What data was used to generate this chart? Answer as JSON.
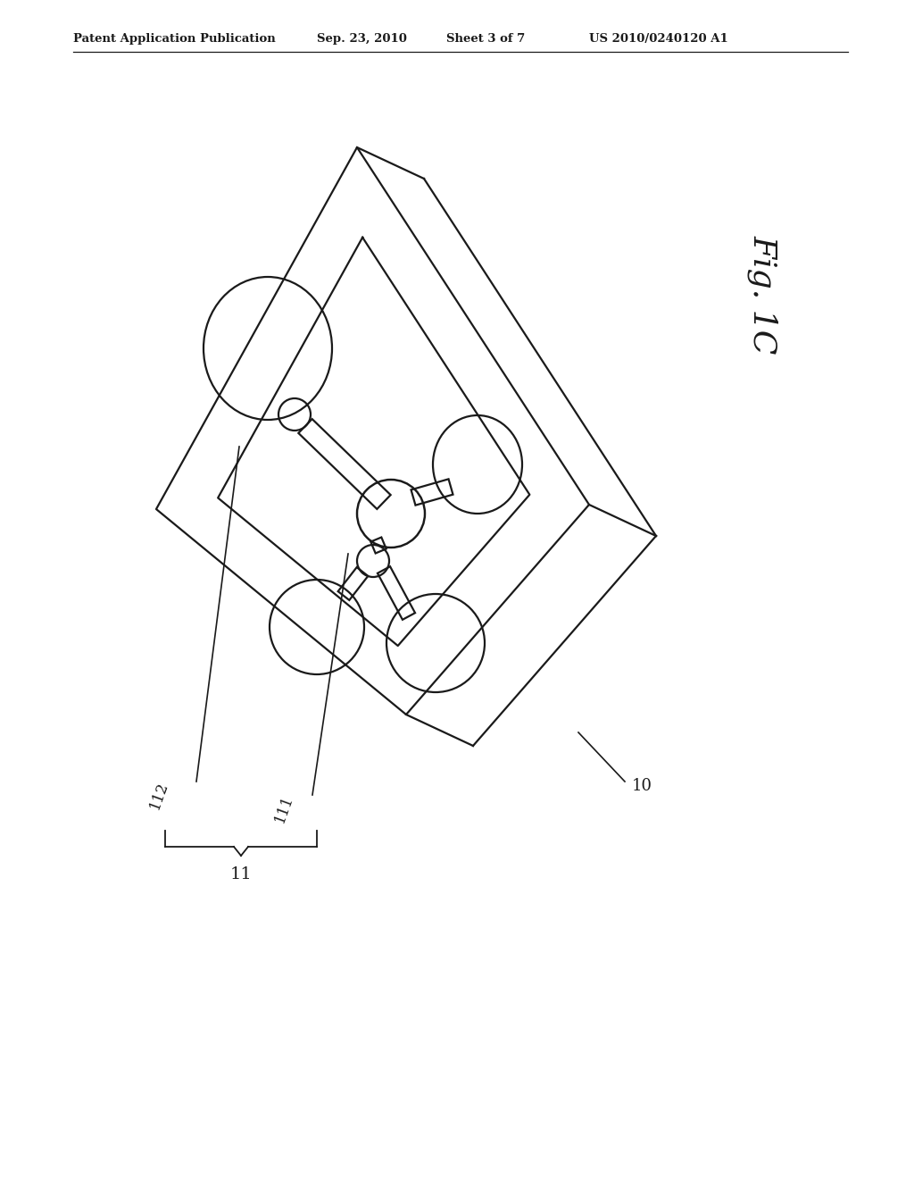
{
  "bg_color": "#ffffff",
  "line_color": "#1a1a1a",
  "header_text": "Patent Application Publication",
  "header_date": "Sep. 23, 2010",
  "header_sheet": "Sheet 3 of 7",
  "header_patent": "US 2010/0240120 A1",
  "fig_label": "Fig. 1C",
  "label_10": "10",
  "label_11": "11",
  "label_111": "111",
  "label_112": "112",
  "strip_color": "#ffffff"
}
